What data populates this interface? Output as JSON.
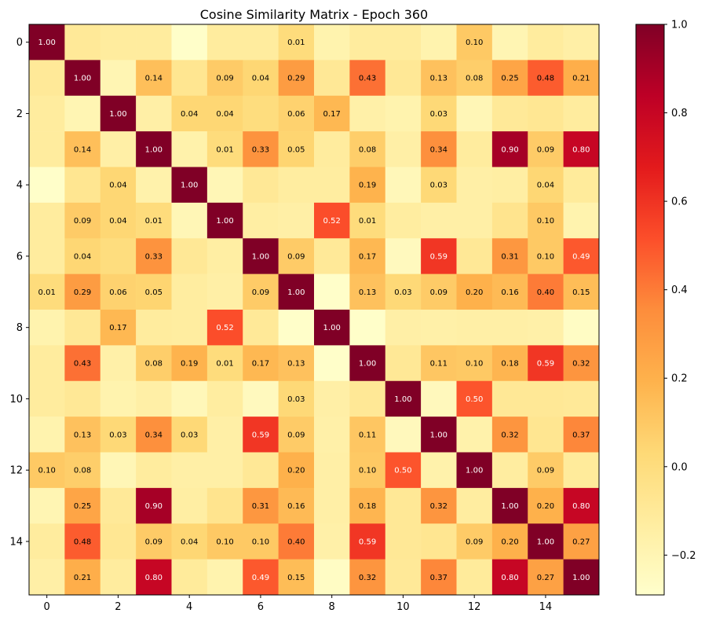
{
  "chart_data": {
    "type": "heatmap",
    "title": "Cosine Similarity Matrix - Epoch 360",
    "xlabel": "",
    "ylabel": "",
    "size": 16,
    "x_ticks": [
      0,
      2,
      4,
      6,
      8,
      10,
      12,
      14
    ],
    "y_ticks": [
      0,
      2,
      4,
      6,
      8,
      10,
      12,
      14
    ],
    "colormap": "YlOrRd",
    "vmin": -0.29,
    "vmax": 1.0,
    "colorbar_ticks": [
      -0.2,
      0.0,
      0.2,
      0.4,
      0.6,
      0.8,
      1.0
    ],
    "colorbar_tick_labels": [
      "−0.2",
      "0.0",
      "0.2",
      "0.4",
      "0.6",
      "0.8",
      "1.0"
    ],
    "values": [
      [
        1.0,
        -0.1,
        -0.12,
        -0.12,
        -0.28,
        -0.12,
        -0.12,
        0.01,
        -0.18,
        -0.12,
        -0.12,
        -0.18,
        0.1,
        -0.2,
        -0.12,
        -0.15
      ],
      [
        -0.1,
        1.0,
        -0.2,
        0.14,
        -0.07,
        0.09,
        0.04,
        0.29,
        -0.09,
        0.43,
        -0.09,
        0.13,
        0.08,
        0.25,
        0.48,
        0.21
      ],
      [
        -0.12,
        -0.2,
        1.0,
        -0.15,
        0.04,
        0.04,
        0.0,
        0.06,
        0.17,
        -0.16,
        -0.18,
        0.03,
        -0.21,
        -0.1,
        -0.08,
        -0.12
      ],
      [
        -0.12,
        0.14,
        -0.15,
        1.0,
        -0.17,
        0.01,
        0.33,
        0.05,
        -0.12,
        0.08,
        -0.15,
        0.34,
        -0.12,
        0.9,
        0.09,
        0.8
      ],
      [
        -0.28,
        -0.07,
        0.04,
        -0.17,
        1.0,
        -0.21,
        -0.09,
        -0.13,
        -0.13,
        0.19,
        -0.22,
        0.03,
        -0.15,
        -0.14,
        0.04,
        -0.11
      ],
      [
        -0.12,
        0.09,
        0.04,
        0.01,
        -0.21,
        1.0,
        -0.14,
        -0.15,
        0.52,
        0.01,
        -0.13,
        -0.15,
        -0.15,
        -0.06,
        0.1,
        -0.18
      ],
      [
        -0.12,
        0.04,
        0.0,
        0.33,
        -0.09,
        -0.14,
        1.0,
        0.09,
        -0.1,
        0.17,
        -0.24,
        0.59,
        -0.09,
        0.31,
        0.1,
        0.49
      ],
      [
        0.01,
        0.29,
        0.06,
        0.05,
        -0.13,
        -0.15,
        0.09,
        1.0,
        -0.28,
        0.13,
        0.03,
        0.09,
        0.2,
        0.16,
        0.4,
        0.15
      ],
      [
        -0.18,
        -0.09,
        0.17,
        -0.12,
        -0.13,
        0.52,
        -0.1,
        -0.28,
        1.0,
        -0.28,
        -0.15,
        -0.16,
        -0.15,
        -0.15,
        -0.16,
        -0.26
      ],
      [
        -0.12,
        0.43,
        -0.16,
        0.08,
        0.19,
        0.01,
        0.17,
        0.13,
        -0.28,
        1.0,
        -0.09,
        0.11,
        0.1,
        0.18,
        0.59,
        0.32
      ],
      [
        -0.12,
        -0.09,
        -0.18,
        -0.15,
        -0.22,
        -0.13,
        -0.24,
        0.03,
        -0.15,
        -0.09,
        1.0,
        -0.23,
        0.5,
        -0.09,
        -0.09,
        -0.1
      ],
      [
        -0.18,
        0.13,
        0.03,
        0.34,
        0.03,
        -0.15,
        0.59,
        0.09,
        -0.16,
        0.11,
        -0.23,
        1.0,
        -0.17,
        0.32,
        -0.07,
        0.37
      ],
      [
        0.1,
        0.08,
        -0.21,
        -0.12,
        -0.15,
        -0.15,
        -0.09,
        0.2,
        -0.15,
        0.1,
        0.5,
        -0.17,
        1.0,
        -0.13,
        0.09,
        -0.11
      ],
      [
        -0.2,
        0.25,
        -0.1,
        0.9,
        -0.14,
        -0.06,
        0.31,
        0.16,
        -0.15,
        0.18,
        -0.09,
        0.32,
        -0.13,
        1.0,
        0.2,
        0.8
      ],
      [
        -0.12,
        0.48,
        -0.08,
        0.09,
        0.04,
        0.1,
        0.1,
        0.4,
        -0.16,
        0.59,
        -0.09,
        -0.07,
        0.09,
        0.2,
        1.0,
        0.27
      ],
      [
        -0.15,
        0.21,
        -0.12,
        0.8,
        -0.11,
        -0.18,
        0.49,
        0.15,
        -0.26,
        0.32,
        -0.1,
        0.37,
        -0.11,
        0.8,
        0.27,
        1.0
      ]
    ],
    "label_threshold": 0.0
  }
}
